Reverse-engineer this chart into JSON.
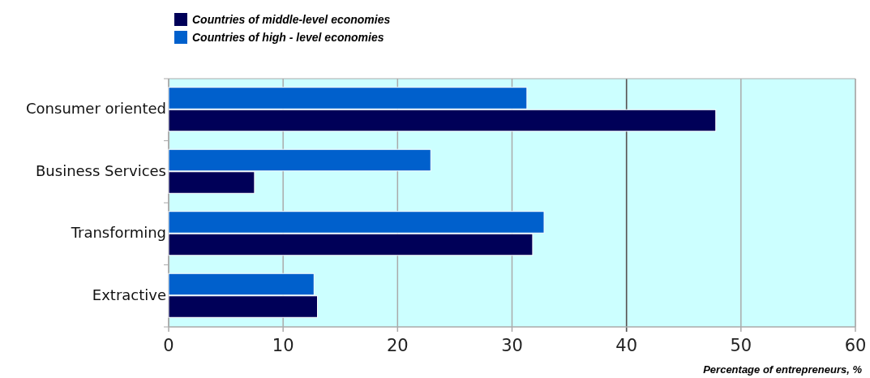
{
  "chart_data": {
    "type": "bar",
    "orientation": "horizontal",
    "xlabel": "Percentage of entrepreneurs, %",
    "categories": [
      "Consumer oriented",
      "Business Services",
      "Transforming",
      "Extractive"
    ],
    "series": [
      {
        "name": "Countries of middle-level economies",
        "color": "#000058",
        "values": [
          47.8,
          7.5,
          31.8,
          13.0
        ]
      },
      {
        "name": "Countries of high - level economies",
        "color": "#0060cc",
        "values": [
          31.3,
          22.9,
          32.8,
          12.7
        ]
      }
    ],
    "xlim": [
      0,
      60
    ],
    "xticks": [
      0,
      10,
      20,
      30,
      40,
      50,
      60
    ],
    "grid": "x",
    "legend": "top left",
    "ref_lines": [
      {
        "axis": "x",
        "value": 40,
        "color": "#555555"
      }
    ]
  }
}
